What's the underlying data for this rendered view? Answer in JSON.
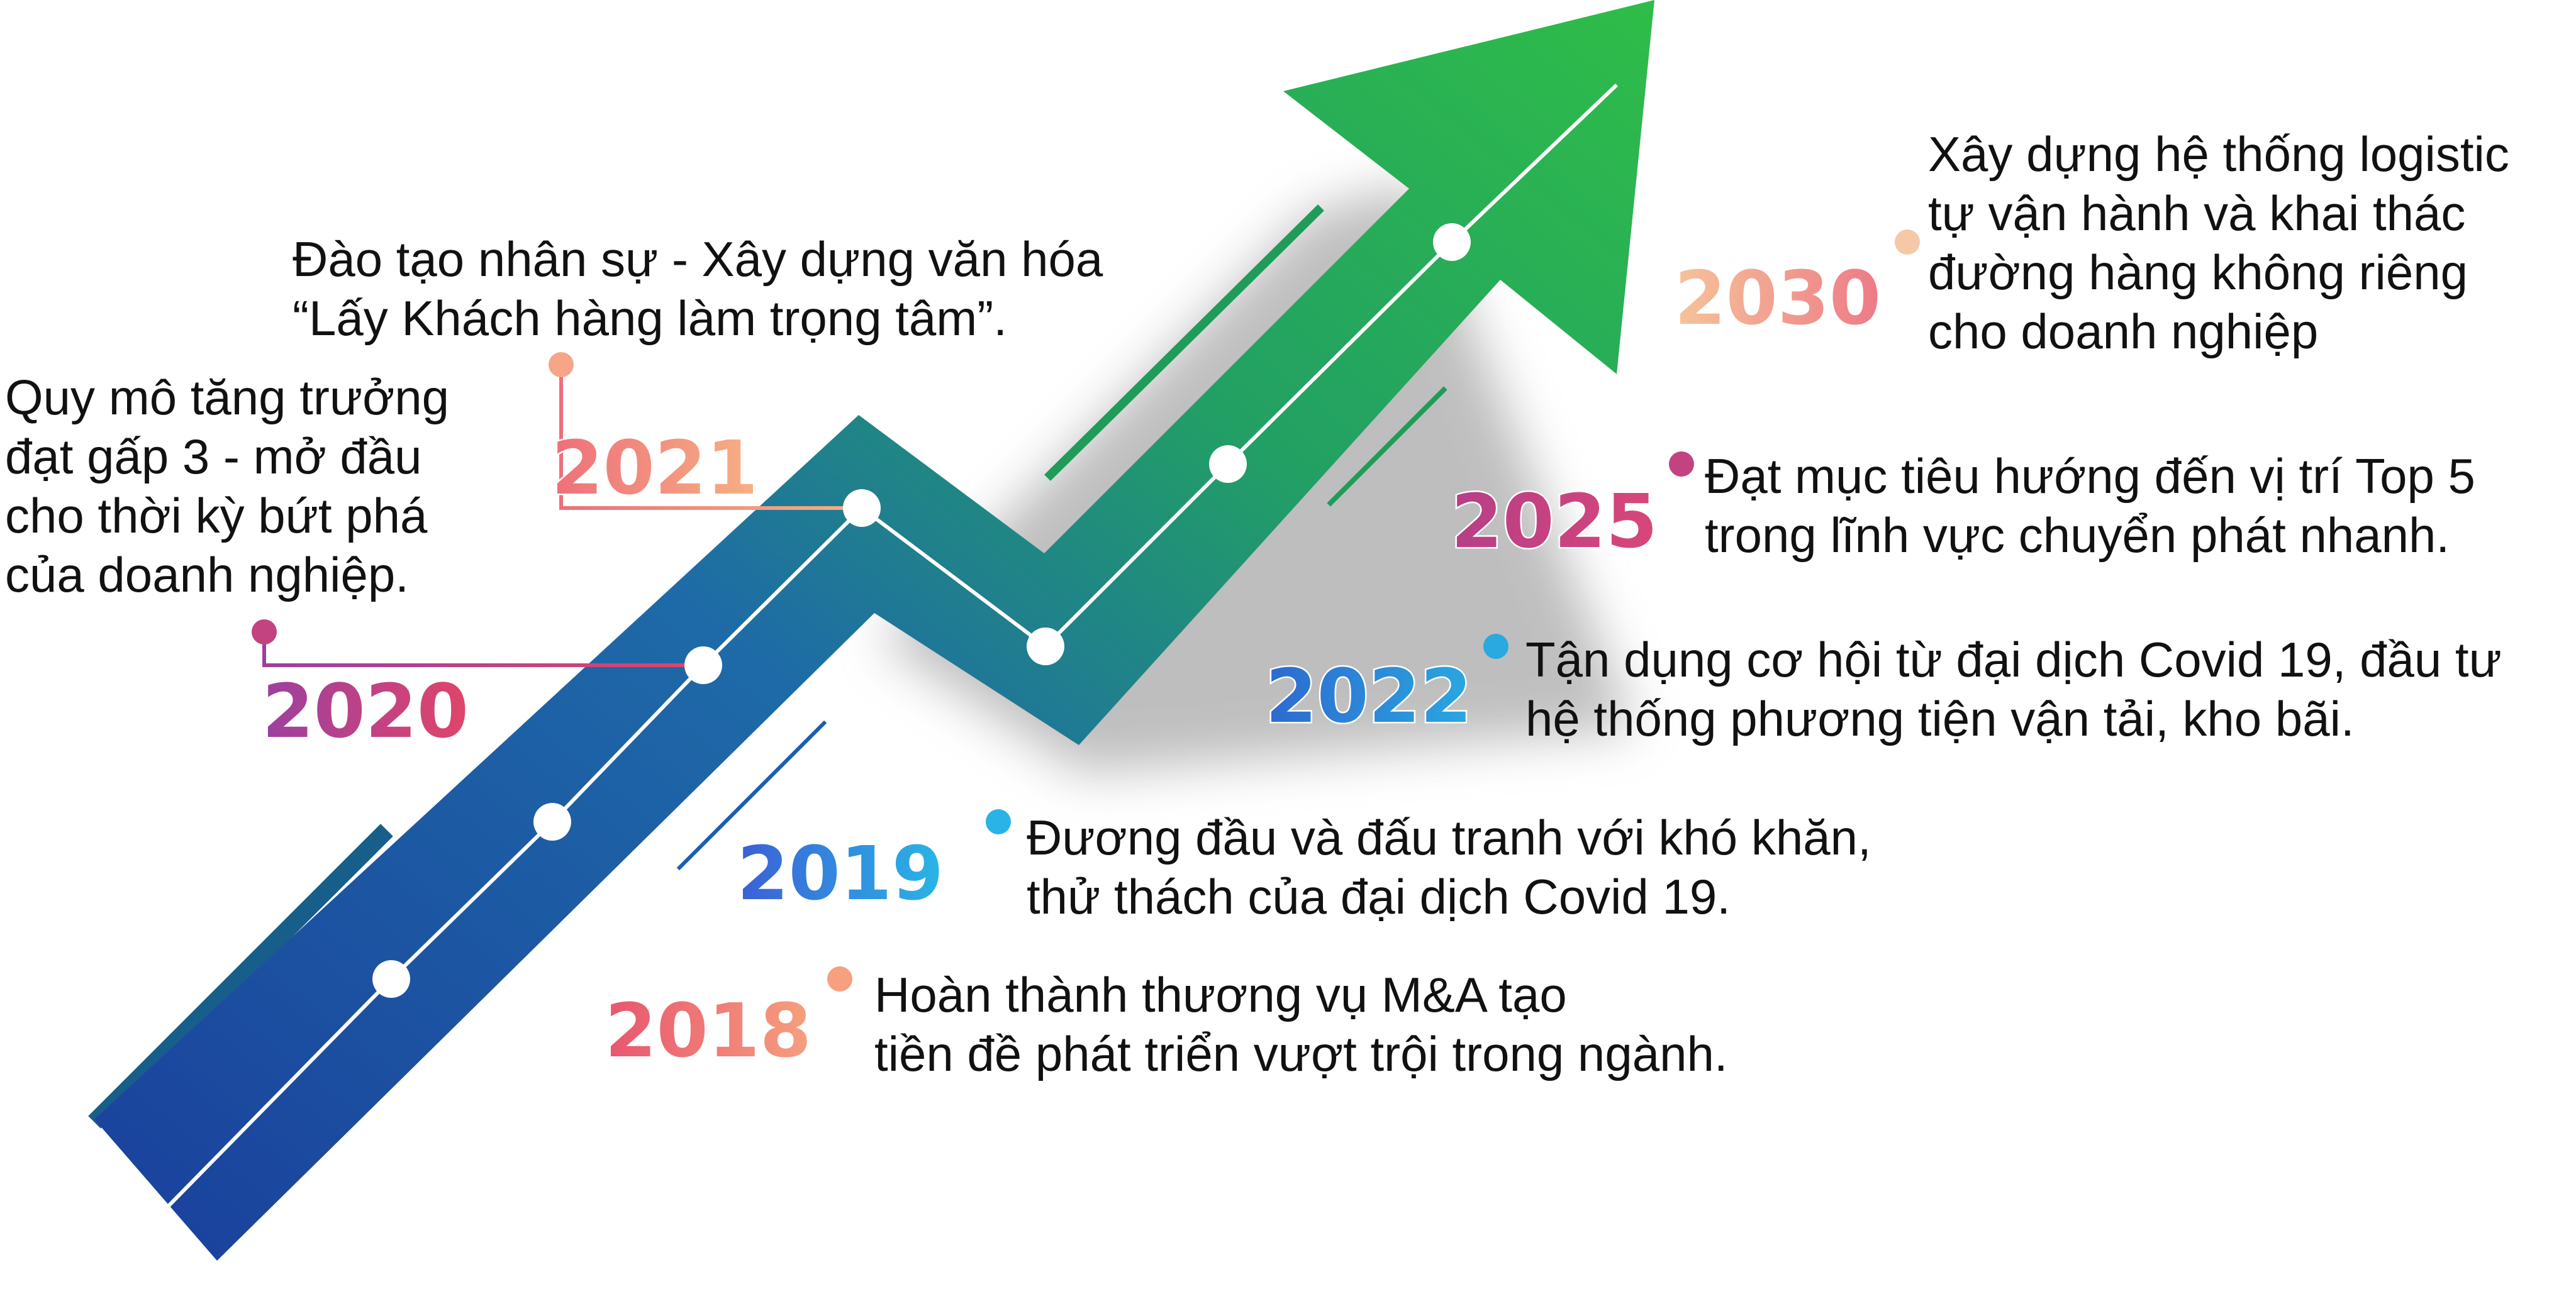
{
  "milestones": [
    {
      "year": "2018",
      "color": "#f08a78",
      "lines": [
        "Hoàn thành thương vụ M&A tạo",
        "tiền đề phát triển vượt trội trong ngành."
      ]
    },
    {
      "year": "2019",
      "color": "#2e8fd6",
      "lines": [
        "Đương đầu và đấu tranh với khó khăn,",
        "thử thách của đại dịch Covid 19."
      ]
    },
    {
      "year": "2020",
      "color": "#c2437f",
      "lines": [
        "Quy mô tăng trưởng",
        "đạt gấp 3 - mở đầu",
        "cho thời kỳ bứt phá",
        "của doanh nghiệp."
      ]
    },
    {
      "year": "2021",
      "color": "#ee8a80",
      "lines": [
        "Đào tạo nhân sự - Xây dựng văn hóa",
        "“Lấy Khách hàng làm trọng tâm”."
      ]
    },
    {
      "year": "2022",
      "color": "#2e8fd6",
      "lines": [
        "Tận dụng cơ hội từ đại dịch Covid 19, đầu tư",
        "hệ thống phương tiện vận tải, kho bãi."
      ]
    },
    {
      "year": "2025",
      "color": "#c2437f",
      "lines": [
        "Đạt mục tiêu hướng đến vị trí Top 5",
        "trong lĩnh vực chuyển phát nhanh."
      ]
    },
    {
      "year": "2030",
      "color": "#ee8a80",
      "lines": [
        "Xây dựng hệ thống logistic",
        "tự vận hành và khai thác",
        "đường hàng không riêng",
        "cho doanh nghiệp"
      ]
    }
  ],
  "colors": {
    "arrow_top": "#2fb84a",
    "arrow_bottom": "#1a4aa0",
    "node_fill": "#ffffff"
  }
}
